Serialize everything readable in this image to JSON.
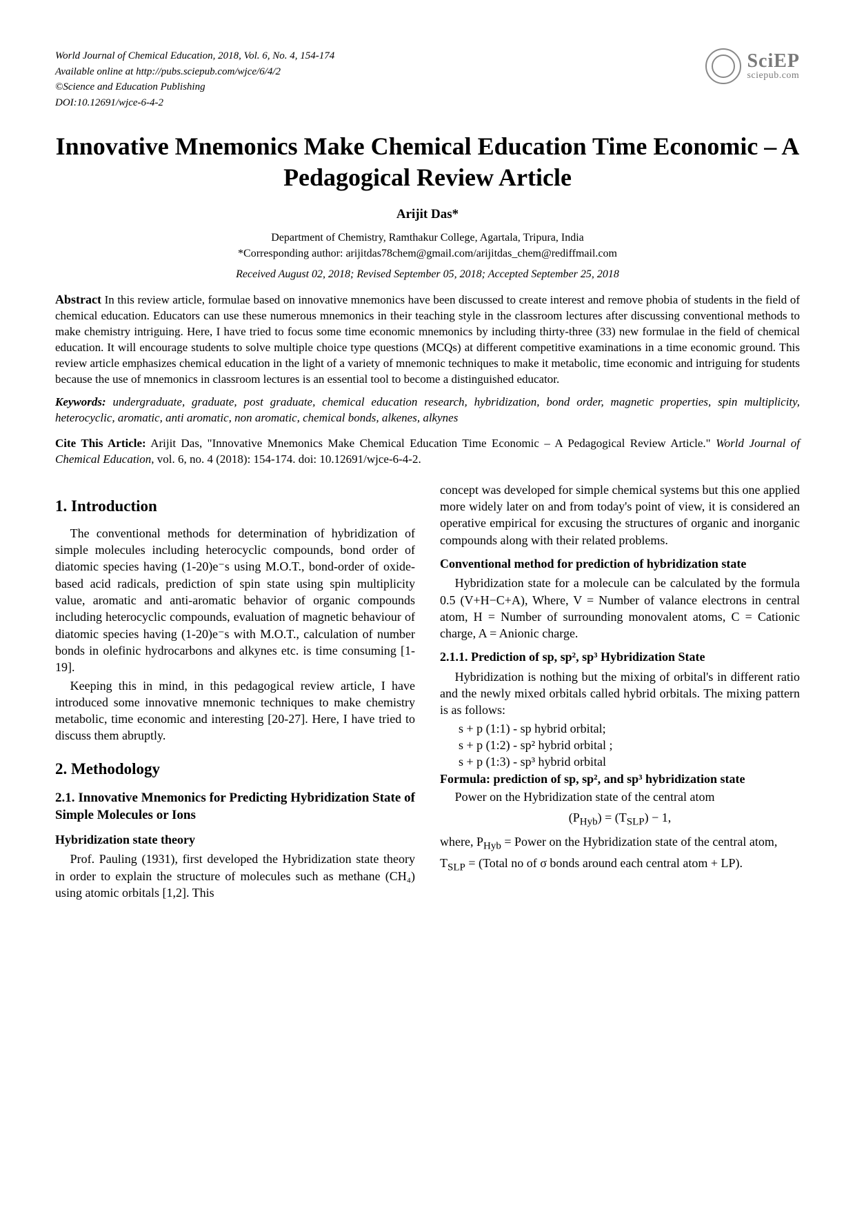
{
  "journal": {
    "line1": "World Journal of Chemical Education, 2018, Vol. 6, No. 4, 154-174",
    "line2": "Available online at http://pubs.sciepub.com/wjce/6/4/2",
    "line3": "©Science and Education Publishing",
    "line4": "DOI:10.12691/wjce-6-4-2"
  },
  "logo": {
    "main": "SciEP",
    "sub": "sciepub.com"
  },
  "title": "Innovative Mnemonics Make Chemical Education Time Economic – A Pedagogical Review Article",
  "author": "Arijit Das*",
  "affiliation1": "Department of Chemistry, Ramthakur College, Agartala, Tripura, India",
  "affiliation2": "*Corresponding author: arijitdas78chem@gmail.com/arijitdas_chem@rediffmail.com",
  "dates": "Received August 02, 2018; Revised September 05, 2018; Accepted September 25, 2018",
  "abstract": {
    "head": "Abstract",
    "body": "In this review article, formulae based on innovative mnemonics have been discussed to create interest and remove phobia of students in the field of chemical education. Educators can use these numerous mnemonics in their teaching style in the classroom lectures after discussing conventional methods to make chemistry intriguing. Here, I have tried to focus some time economic mnemonics by including thirty-three (33) new formulae in the field of chemical education. It will encourage students to solve multiple choice type questions (MCQs) at different competitive examinations in a time economic ground. This review article emphasizes chemical education in the light of a variety of mnemonic techniques to make it metabolic, time economic and intriguing for students because the use of mnemonics in classroom lectures is an essential tool to become a distinguished educator."
  },
  "keywords": {
    "head": "Keywords:",
    "body": "undergraduate, graduate, post graduate, chemical education research, hybridization, bond order, magnetic properties, spin multiplicity, heterocyclic, aromatic, anti aromatic, non aromatic, chemical bonds, alkenes, alkynes"
  },
  "cite": {
    "head": "Cite This Article:",
    "body_part1": "Arijit Das, \"Innovative Mnemonics Make Chemical Education Time Economic – A Pedagogical Review Article.\" ",
    "body_italic": "World Journal of Chemical Education",
    "body_part2": ", vol. 6, no. 4 (2018): 154-174. doi: 10.12691/wjce-6-4-2."
  },
  "sections": {
    "s1_head": "1. Introduction",
    "s1_p1": "The conventional methods for determination of hybridization of simple molecules including heterocyclic compounds, bond order of diatomic species having (1-20)e⁻s using M.O.T., bond-order of oxide-based acid radicals, prediction of spin state using spin multiplicity value, aromatic and anti-aromatic behavior of organic compounds including heterocyclic compounds, evaluation of magnetic behaviour of diatomic species having (1-20)e⁻s with M.O.T., calculation of number bonds in olefinic hydrocarbons and alkynes etc. is time consuming [1-19].",
    "s1_p2": "Keeping this in mind, in this pedagogical review article, I have introduced some innovative mnemonic techniques to make chemistry metabolic, time economic and interesting [20-27]. Here, I have tried to discuss them abruptly.",
    "s2_head": "2. Methodology",
    "s2_1_head": "2.1. Innovative Mnemonics for Predicting Hybridization State of Simple Molecules or Ions",
    "hyb_theory_head": "Hybridization state theory",
    "hyb_theory_p1": "Prof. Pauling (1931), first developed the Hybridization state theory in order to explain the structure of molecules such as methane (CH₄) using atomic orbitals [1,2]. This",
    "right_top": "concept was developed for simple chemical systems but this one applied more widely later on and from today's point of view, it is considered an operative empirical for excusing the structures of organic and inorganic compounds along with their related problems.",
    "conv_head": "Conventional method for prediction of hybridization state",
    "conv_p": "Hybridization state for a molecule can be calculated by the formula 0.5 (V+H−C+A), Where, V = Number of valance electrons in central atom, H = Number of surrounding monovalent atoms, C = Cationic charge, A = Anionic charge.",
    "s211_head": "2.1.1. Prediction of sp, sp², sp³ Hybridization State",
    "s211_p1": "Hybridization is nothing but the mixing of orbital's in different ratio and the newly mixed orbitals called hybrid orbitals. The mixing pattern is as follows:",
    "mix1": "s + p (1:1) - sp hybrid orbital;",
    "mix2": "s + p (1:2) - sp² hybrid orbital ;",
    "mix3": "s + p (1:3) - sp³ hybrid orbital",
    "formula_head": "Formula: prediction of sp, sp², and sp³ hybridization state",
    "formula_text": "Power on the Hybridization state of the central atom",
    "formula_eq": "(PHyb) = (TSLP) − 1,",
    "formula_where": "where, PHyb = Power on the Hybridization state of the central atom,",
    "formula_tslp": "TSLP = (Total no of σ bonds around each central atom + LP)."
  },
  "colors": {
    "text": "#000000",
    "bg": "#ffffff",
    "logo": "#7a7a7a"
  },
  "typography": {
    "body_pt": 18,
    "title_pt": 36,
    "h2_pt": 23,
    "h3_pt": 19
  }
}
